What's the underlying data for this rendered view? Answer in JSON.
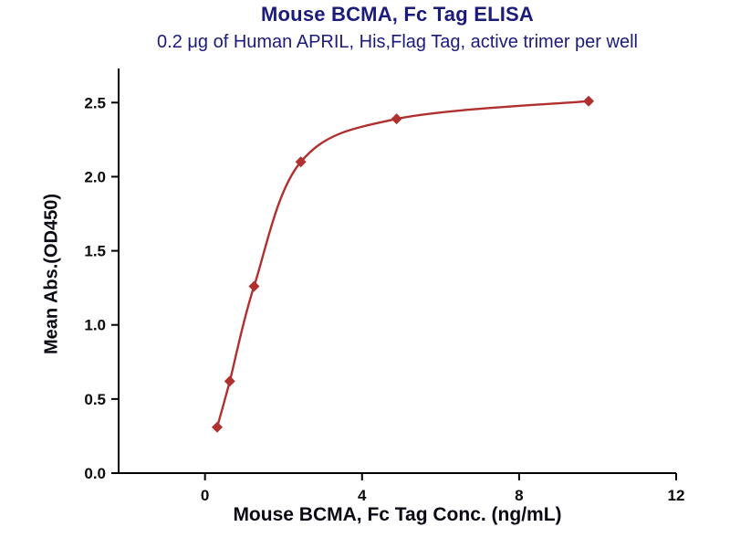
{
  "chart_data": {
    "type": "scatter",
    "title": "Mouse BCMA, Fc Tag ELISA",
    "subtitle": "0.2 μg of Human APRIL, His,Flag Tag, active trimer per well",
    "xlabel": "Mouse BCMA, Fc Tag Conc. (ng/mL)",
    "ylabel": "Mean Abs.(OD450)",
    "x": [
      0.31,
      0.63,
      1.25,
      2.44,
      4.88,
      9.77
    ],
    "y": [
      0.31,
      0.62,
      1.26,
      2.1,
      2.39,
      2.51
    ],
    "fit": "4PL sigmoidal curve through all points",
    "marker": "diamond",
    "xlim": [
      -2.2,
      12
    ],
    "ylim": [
      0,
      2.73
    ],
    "xticks": [
      0,
      4,
      8,
      12
    ],
    "xtick_labels": [
      "0",
      "4",
      "8",
      "12"
    ],
    "yticks": [
      0.0,
      0.5,
      1.0,
      1.5,
      2.0,
      2.5
    ],
    "ytick_labels": [
      "0.0",
      "0.5",
      "1.0",
      "1.5",
      "2.0",
      "2.5"
    ],
    "grid": false,
    "legend": false,
    "colors": {
      "curve": "#b03030",
      "marker": "#b03030",
      "title": "#1b1b7a",
      "axis": "#000000"
    }
  }
}
